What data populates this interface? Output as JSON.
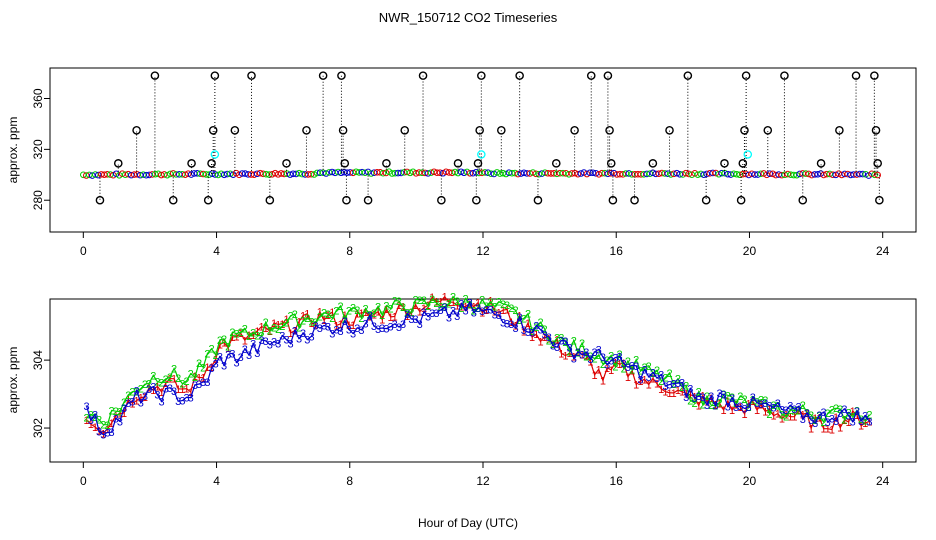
{
  "chart_data": {
    "title": "NWR_150712  CO2 Timeseries",
    "xlabel": "Hour of Day (UTC)",
    "x_ticks": [
      "0",
      "4",
      "8",
      "12",
      "16",
      "20",
      "24"
    ],
    "panels": [
      {
        "type": "scatter",
        "ylabel": "approx. ppm",
        "xlim": [
          -1,
          25
        ],
        "ylim": [
          255,
          384
        ],
        "y_ticks": [
          "280",
          "320",
          "360"
        ],
        "y_tick_values": [
          280,
          320,
          360
        ],
        "series": [
          {
            "color": "#000000",
            "marker": "open-circle",
            "outlier_x": [
              0.5,
              1.05,
              1.6,
              2.15,
              2.7,
              3.25,
              3.75,
              3.85,
              3.9,
              3.95,
              4.55,
              5.05,
              5.6,
              6.1,
              6.7,
              7.2,
              7.75,
              7.8,
              7.85,
              7.9,
              8.55,
              9.1,
              9.65,
              10.2,
              10.75,
              11.25,
              11.8,
              11.85,
              11.9,
              11.95,
              12.55,
              13.1,
              13.65,
              14.2,
              14.75,
              15.25,
              15.75,
              15.8,
              15.85,
              15.9,
              16.55,
              17.1,
              17.6,
              18.15,
              18.7,
              19.25,
              19.75,
              19.8,
              19.85,
              19.9,
              20.55,
              21.05,
              21.6,
              22.15,
              22.7,
              23.2,
              23.75,
              23.8,
              23.85,
              23.9
            ],
            "outlier_y": [
              280,
              309,
              335,
              378,
              280,
              309,
              280,
              309,
              335,
              378,
              335,
              378,
              280,
              309,
              335,
              378,
              378,
              335,
              309,
              280,
              280,
              309,
              335,
              378,
              280,
              309,
              280,
              309,
              335,
              378,
              335,
              378,
              280,
              309,
              335,
              378,
              378,
              335,
              309,
              280,
              280,
              309,
              335,
              378,
              280,
              309,
              280,
              309,
              335,
              378,
              335,
              378,
              280,
              309,
              335,
              378,
              378,
              335,
              309,
              280
            ]
          },
          {
            "color": "#00ffff",
            "marker": "open-circle",
            "x": [
              3.95,
              11.95,
              19.95
            ],
            "y": [
              316,
              316,
              316
            ]
          }
        ],
        "note": "baseline trace ~300 ppm composed of overlapping series 1 (red), 2 (green), 3 (blue)"
      },
      {
        "type": "line",
        "ylabel": "approx. ppm",
        "xlim": [
          -1,
          25
        ],
        "ylim": [
          301.0,
          305.8
        ],
        "y_ticks": [
          "302",
          "304"
        ],
        "y_tick_values": [
          302,
          304
        ],
        "series": [
          {
            "name": "1",
            "color": "#dd0000"
          },
          {
            "name": "2",
            "color": "#00cc00"
          },
          {
            "name": "3",
            "color": "#0000cc"
          }
        ],
        "x": [
          0.1,
          0.6,
          1.1,
          1.6,
          2.1,
          2.6,
          3.1,
          3.6,
          4.1,
          4.6,
          5.1,
          5.6,
          6.1,
          6.6,
          7.1,
          7.6,
          8.1,
          8.6,
          9.1,
          9.6,
          10.1,
          10.6,
          11.1,
          11.6,
          12.1,
          12.6,
          13.1,
          13.6,
          14.1,
          14.6,
          15.1,
          15.6,
          16.1,
          16.6,
          17.1,
          17.6,
          18.1,
          18.6,
          19.1,
          19.6,
          20.1,
          20.6,
          21.1,
          21.6,
          22.1,
          22.6,
          23.1,
          23.6
        ],
        "values": {
          "1": [
            302.3,
            302.0,
            302.5,
            303.0,
            303.2,
            303.3,
            303.1,
            303.6,
            304.4,
            304.6,
            304.7,
            304.9,
            305.0,
            305.1,
            305.3,
            305.2,
            305.2,
            305.3,
            305.4,
            305.5,
            305.6,
            305.7,
            305.8,
            305.7,
            305.6,
            305.4,
            305.1,
            304.8,
            304.5,
            304.2,
            304.0,
            303.5,
            303.8,
            303.5,
            303.3,
            303.2,
            302.9,
            302.8,
            302.7,
            302.6,
            302.6,
            302.5,
            302.4,
            302.3,
            302.1,
            302.2,
            302.3,
            302.2
          ],
          "2": [
            302.4,
            302.2,
            302.6,
            303.2,
            303.5,
            303.6,
            303.4,
            303.8,
            304.5,
            304.7,
            304.8,
            305.0,
            305.1,
            305.2,
            305.3,
            305.4,
            305.4,
            305.5,
            305.5,
            305.6,
            305.6,
            305.7,
            305.7,
            305.7,
            305.6,
            305.5,
            305.3,
            305.0,
            304.7,
            304.4,
            304.3,
            304.1,
            304.0,
            303.8,
            303.6,
            303.4,
            303.1,
            302.8,
            302.9,
            302.8,
            302.7,
            302.6,
            302.5,
            302.5,
            302.4,
            302.4,
            302.5,
            302.4
          ],
          "3": [
            302.5,
            301.9,
            302.3,
            302.9,
            303.0,
            303.0,
            302.9,
            303.3,
            304.0,
            304.1,
            304.3,
            304.5,
            304.6,
            304.8,
            304.9,
            305.0,
            305.0,
            305.1,
            305.1,
            305.2,
            305.2,
            305.3,
            305.4,
            305.5,
            305.4,
            305.3,
            305.1,
            304.9,
            304.6,
            304.3,
            304.2,
            304.1,
            303.9,
            303.7,
            303.5,
            303.3,
            303.1,
            302.8,
            302.9,
            302.8,
            302.7,
            302.6,
            302.5,
            302.4,
            302.3,
            302.4,
            302.4,
            302.2
          ]
        }
      }
    ]
  }
}
